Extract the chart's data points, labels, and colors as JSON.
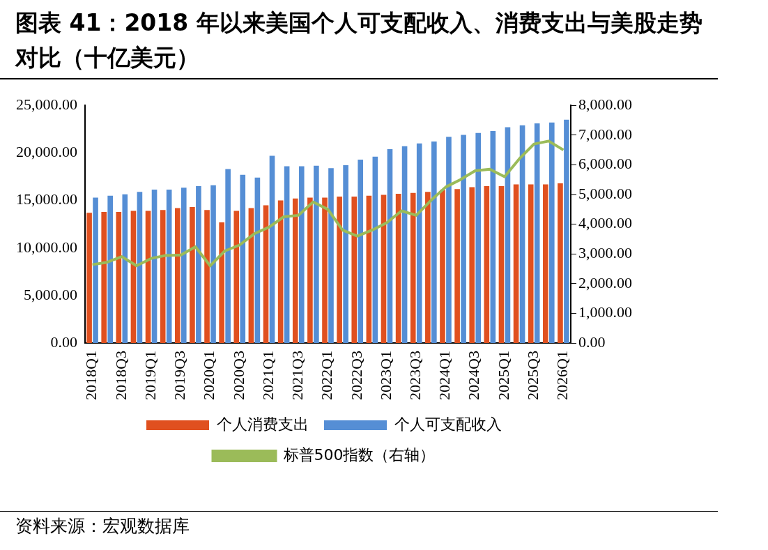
{
  "chart_data": {
    "type": "bar",
    "title": "图表 41：2018 年以来美国个人可支配收入、消费支出与美股走势对比（十亿美元）",
    "categories": [
      "2018Q1",
      null,
      "2018Q3",
      null,
      "2019Q1",
      null,
      "2019Q3",
      null,
      "2020Q1",
      null,
      "2020Q3",
      null,
      "2021Q1",
      null,
      "2021Q3",
      null,
      "2022Q1",
      null,
      "2022Q3",
      null,
      "2023Q1",
      null,
      "2023Q3",
      null,
      "2024Q1",
      null,
      "2024Q3",
      null,
      "2025Q1",
      null,
      "2025Q3",
      null,
      "2026Q1"
    ],
    "series": [
      {
        "name": "个人消费支出",
        "color": "#e0501f",
        "values": [
          13700,
          13800,
          13800,
          13900,
          13900,
          14000,
          14200,
          14300,
          14000,
          12700,
          13900,
          14200,
          14500,
          15000,
          15200,
          15300,
          15300,
          15400,
          15400,
          15500,
          15600,
          15700,
          15800,
          15900,
          16100,
          16200,
          16400,
          16500,
          16500,
          16700,
          16700,
          16700,
          16800
        ]
      },
      {
        "name": "个人可支配收入",
        "color": "#558ed5",
        "values": [
          15300,
          15500,
          15650,
          15900,
          16150,
          16150,
          16350,
          16500,
          16600,
          18300,
          17700,
          17400,
          19700,
          18600,
          18600,
          18650,
          18400,
          18700,
          19300,
          19600,
          20400,
          20700,
          21000,
          21200,
          21700,
          21900,
          22100,
          22300,
          22700,
          22900,
          23100,
          23200,
          23500
        ]
      },
      {
        "name": "标普500指数（右轴）",
        "type": "line",
        "axis": "y2",
        "color": "#9bbb59",
        "values": [
          2640,
          2720,
          2910,
          2600,
          2850,
          2950,
          2960,
          3240,
          2600,
          3100,
          3300,
          3680,
          3900,
          4250,
          4300,
          4750,
          4500,
          3800,
          3600,
          3800,
          4050,
          4450,
          4300,
          4800,
          5250,
          5500,
          5800,
          5850,
          5600,
          6200,
          6700,
          6800,
          6500
        ]
      }
    ],
    "ylim": [
      0,
      25000
    ],
    "yticks": [
      {
        "value": 0,
        "label": "0.00"
      },
      {
        "value": 5000,
        "label": "5,000.00"
      },
      {
        "value": 10000,
        "label": "10,000.00"
      },
      {
        "value": 15000,
        "label": "15,000.00"
      },
      {
        "value": 20000,
        "label": "20,000.00"
      },
      {
        "value": 25000,
        "label": "25,000.00"
      }
    ],
    "y2lim": [
      0,
      8000
    ],
    "y2ticks": [
      {
        "value": 0,
        "label": "0.00"
      },
      {
        "value": 1000,
        "label": "1,000.00"
      },
      {
        "value": 2000,
        "label": "2,000.00"
      },
      {
        "value": 3000,
        "label": "3,000.00"
      },
      {
        "value": 4000,
        "label": "4,000.00"
      },
      {
        "value": 5000,
        "label": "5,000.00"
      },
      {
        "value": 6000,
        "label": "6,000.00"
      },
      {
        "value": 7000,
        "label": "7,000.00"
      },
      {
        "value": 8000,
        "label": "8,000.00"
      }
    ],
    "grid": false,
    "legend": "bottom",
    "marker": "none",
    "annotations": [
      "资料来源：宏观数据库"
    ]
  }
}
